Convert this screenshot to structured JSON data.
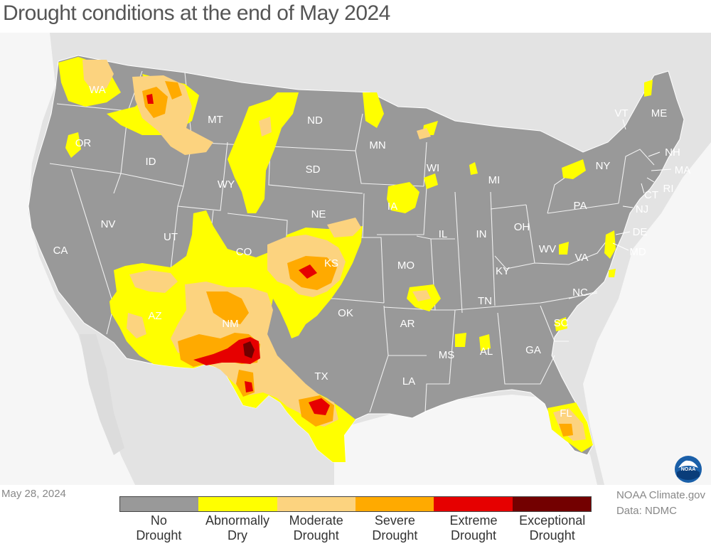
{
  "title": "Drought conditions at the end of May 2024",
  "date": "May 28, 2024",
  "credit": {
    "line1": "NOAA Climate.gov",
    "line2": "Data: NDMC"
  },
  "legend": [
    {
      "key": "none",
      "line1": "No",
      "line2": "Drought",
      "color": "#999999"
    },
    {
      "key": "d0",
      "line1": "Abnormally",
      "line2": "Dry",
      "color": "#ffff00"
    },
    {
      "key": "d1",
      "line1": "Moderate",
      "line2": "Drought",
      "color": "#fcd37f"
    },
    {
      "key": "d2",
      "line1": "Severe",
      "line2": "Drought",
      "color": "#ffaa00"
    },
    {
      "key": "d3",
      "line1": "Extreme",
      "line2": "Drought",
      "color": "#e60000"
    },
    {
      "key": "d4",
      "line1": "Exceptional",
      "line2": "Drought",
      "color": "#730000"
    }
  ],
  "states": {
    "WA": "WA",
    "OR": "OR",
    "CA": "CA",
    "ID": "ID",
    "NV": "NV",
    "MT": "MT",
    "WY": "WY",
    "UT": "UT",
    "AZ": "AZ",
    "CO": "CO",
    "NM": "NM",
    "ND": "ND",
    "SD": "SD",
    "NE": "NE",
    "KS": "KS",
    "OK": "OK",
    "TX": "TX",
    "MN": "MN",
    "IA": "IA",
    "MO": "MO",
    "AR": "AR",
    "LA": "LA",
    "WI": "WI",
    "IL": "IL",
    "MS": "MS",
    "MI": "MI",
    "IN": "IN",
    "KY": "KY",
    "TN": "TN",
    "AL": "AL",
    "OH": "OH",
    "GA": "GA",
    "FL": "FL",
    "SC": "SC",
    "NC": "NC",
    "VA": "VA",
    "WV": "WV",
    "PA": "PA",
    "NY": "NY",
    "VT": "VT",
    "ME": "ME",
    "NH": "NH",
    "MA": "MA",
    "RI": "RI",
    "CT": "CT",
    "NJ": "NJ",
    "DE": "DE",
    "MD": "MD"
  },
  "logo_text": "NOAA"
}
